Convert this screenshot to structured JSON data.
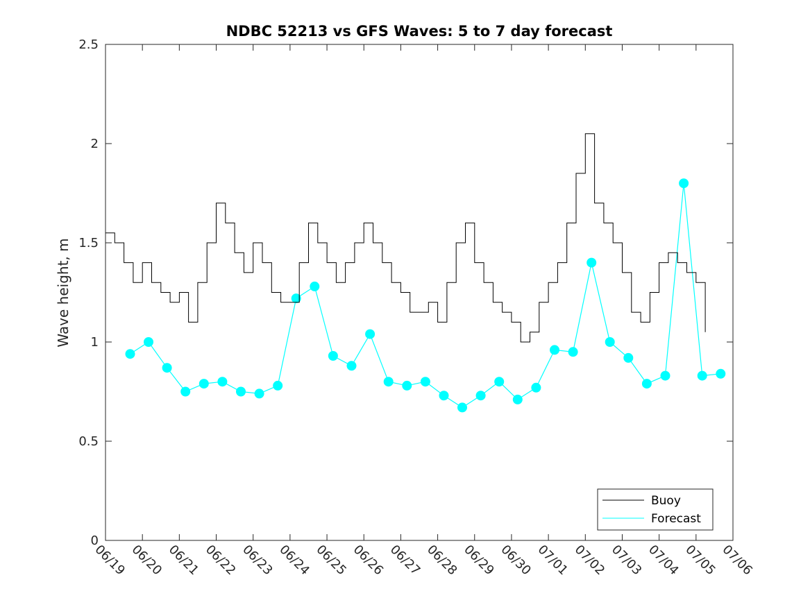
{
  "chart_data": {
    "type": "line",
    "title": "NDBC 52213 vs GFS Waves: 5 to 7 day forecast",
    "xlabel": "",
    "ylabel": "Wave height, m",
    "ylim": [
      0,
      2.5
    ],
    "yticks": [
      "0",
      "0.5",
      "1",
      "1.5",
      "2",
      "2.5"
    ],
    "xlim": [
      "06/19",
      "07/06"
    ],
    "xticks": [
      "06/19",
      "06/20",
      "06/21",
      "06/22",
      "06/23",
      "06/24",
      "06/25",
      "06/26",
      "06/27",
      "06/28",
      "06/29",
      "06/30",
      "07/01",
      "07/02",
      "07/03",
      "07/04",
      "07/05",
      "07/06"
    ],
    "grid": false,
    "legend": {
      "position": "bottom-right",
      "entries": [
        "Buoy",
        "Forecast"
      ]
    },
    "colors": {
      "buoy": "#000000",
      "forecast": "#00ffff"
    },
    "series": [
      {
        "name": "Buoy",
        "x": [
          "06/19 00:00",
          "06/19 06:00",
          "06/19 12:00",
          "06/19 18:00",
          "06/20 00:00",
          "06/20 06:00",
          "06/20 12:00",
          "06/20 18:00",
          "06/21 00:00",
          "06/21 06:00",
          "06/21 12:00",
          "06/21 18:00",
          "06/22 00:00",
          "06/22 06:00",
          "06/22 12:00",
          "06/22 18:00",
          "06/23 00:00",
          "06/23 06:00",
          "06/23 12:00",
          "06/23 18:00",
          "06/24 00:00",
          "06/24 06:00",
          "06/24 12:00",
          "06/24 18:00",
          "06/25 00:00",
          "06/25 06:00",
          "06/25 12:00",
          "06/25 18:00",
          "06/26 00:00",
          "06/26 06:00",
          "06/26 12:00",
          "06/26 18:00",
          "06/27 00:00",
          "06/27 06:00",
          "06/27 12:00",
          "06/27 18:00",
          "06/28 00:00",
          "06/28 06:00",
          "06/28 12:00",
          "06/28 18:00",
          "06/29 00:00",
          "06/29 06:00",
          "06/29 12:00",
          "06/29 18:00",
          "06/30 00:00",
          "06/30 06:00",
          "06/30 12:00",
          "06/30 18:00",
          "07/01 00:00",
          "07/01 06:00",
          "07/01 12:00",
          "07/01 18:00",
          "07/02 00:00",
          "07/02 06:00",
          "07/02 12:00",
          "07/02 18:00",
          "07/03 00:00",
          "07/03 06:00",
          "07/03 12:00",
          "07/03 18:00",
          "07/04 00:00",
          "07/04 06:00",
          "07/04 12:00",
          "07/04 18:00",
          "07/05 00:00",
          "07/05 06:00"
        ],
        "values": [
          1.55,
          1.5,
          1.4,
          1.3,
          1.4,
          1.3,
          1.25,
          1.2,
          1.25,
          1.1,
          1.3,
          1.5,
          1.7,
          1.6,
          1.45,
          1.35,
          1.5,
          1.4,
          1.25,
          1.2,
          1.2,
          1.4,
          1.6,
          1.5,
          1.4,
          1.3,
          1.4,
          1.5,
          1.6,
          1.5,
          1.4,
          1.3,
          1.25,
          1.15,
          1.15,
          1.2,
          1.1,
          1.3,
          1.5,
          1.6,
          1.4,
          1.3,
          1.2,
          1.15,
          1.1,
          1.0,
          1.05,
          1.2,
          1.3,
          1.4,
          1.6,
          1.85,
          2.05,
          1.7,
          1.6,
          1.5,
          1.35,
          1.15,
          1.1,
          1.25,
          1.4,
          1.45,
          1.4,
          1.35,
          1.3,
          1.05
        ]
      },
      {
        "name": "Forecast",
        "x": [
          "06/19 16:00",
          "06/20 04:00",
          "06/20 16:00",
          "06/21 04:00",
          "06/21 16:00",
          "06/22 04:00",
          "06/22 16:00",
          "06/23 04:00",
          "06/23 16:00",
          "06/24 04:00",
          "06/24 16:00",
          "06/25 04:00",
          "06/25 16:00",
          "06/26 04:00",
          "06/26 16:00",
          "06/27 04:00",
          "06/27 16:00",
          "06/28 04:00",
          "06/28 16:00",
          "06/29 04:00",
          "06/29 16:00",
          "06/30 04:00",
          "06/30 16:00",
          "07/01 04:00",
          "07/01 16:00",
          "07/02 04:00",
          "07/02 16:00",
          "07/03 04:00",
          "07/03 16:00",
          "07/04 04:00",
          "07/04 16:00",
          "07/05 04:00",
          "07/05 16:00"
        ],
        "values": [
          0.94,
          1.0,
          0.87,
          0.75,
          0.79,
          0.8,
          0.75,
          0.74,
          0.78,
          1.22,
          1.28,
          0.93,
          0.88,
          1.04,
          0.8,
          0.78,
          0.8,
          0.73,
          0.67,
          0.73,
          0.8,
          0.71,
          0.77,
          0.96,
          0.95,
          1.4,
          1.0,
          0.92,
          0.79,
          0.83,
          1.8,
          0.83,
          0.84
        ]
      }
    ]
  }
}
